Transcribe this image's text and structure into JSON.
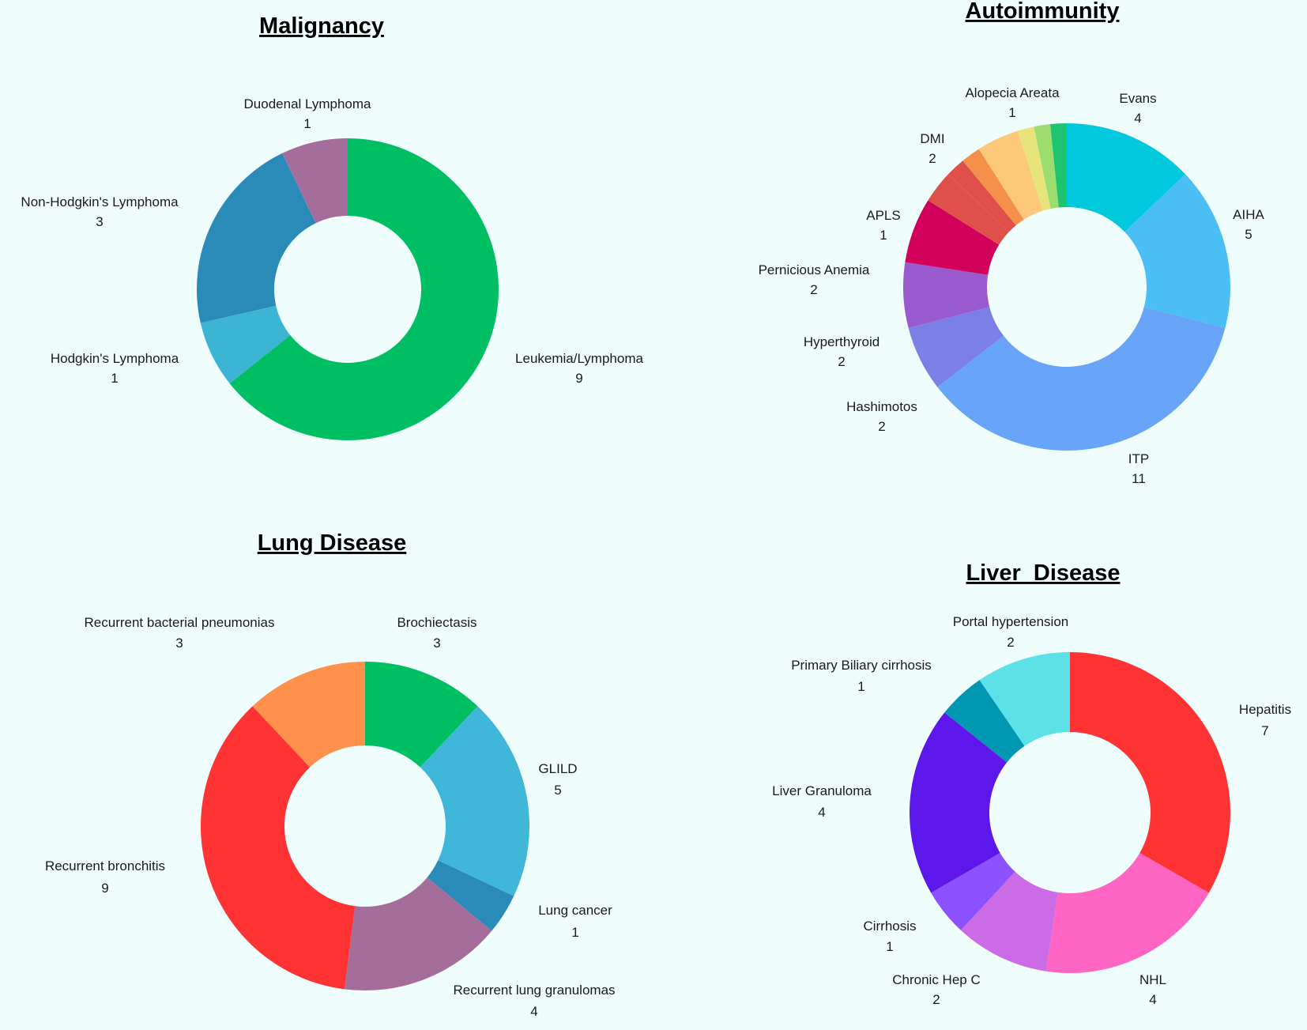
{
  "chart_data": [
    {
      "type": "pie",
      "title": "Malignancy",
      "categories": [
        "Leukemia/Lymphoma",
        "Hodgkin's Lymphoma",
        "Non-Hodgkin's Lymphoma",
        "Duodenal Lymphoma"
      ],
      "values": [
        9,
        1,
        3,
        1
      ],
      "colors": [
        "#00bf63",
        "#3cb4d3",
        "#2a8ab8",
        "#a56d9b"
      ]
    },
    {
      "type": "pie",
      "title": "Autoimmunity",
      "categories": [
        "Evans",
        "AIHA",
        "ITP",
        "Hashimotos",
        "Hyperthyroid",
        "Pernicious Anemia",
        "APLS",
        "DMI",
        "Alopecia Areata"
      ],
      "values": [
        4,
        5,
        11,
        2,
        2,
        2,
        1,
        2,
        1
      ],
      "colors": [
        "#00c9de",
        "#4bbff5",
        "#68a5f8",
        "#7b80e6",
        "#9959cf",
        "#d1005a",
        "#e0504a",
        "#f4904a",
        "#fcc97b",
        "#e8e47c",
        "#9ddc6e",
        "#1bc46d"
      ]
    },
    {
      "type": "pie",
      "title": "Lung Disease",
      "categories": [
        "Brochiectasis",
        "GLILD",
        "Lung cancer",
        "Recurrent lung granulomas",
        "Recurrent bronchitis",
        "Recurrent bacterial pneumonias"
      ],
      "values": [
        3,
        5,
        1,
        4,
        9,
        3
      ],
      "colors": [
        "#00bf63",
        "#40b6d8",
        "#2a8ab8",
        "#a56d99",
        "#ff3333",
        "#ff914d"
      ]
    },
    {
      "type": "pie",
      "title": "Liver  Disease",
      "categories": [
        "Hepatitis",
        "NHL",
        "Chronic Hep C",
        "Cirrhosis",
        "Liver Granuloma",
        "Primary Biliary cirrhosis",
        "Portal hypertension"
      ],
      "values": [
        7,
        4,
        2,
        1,
        4,
        1,
        2
      ],
      "colors": [
        "#ff3333",
        "#ff66c4",
        "#cb6ce6",
        "#8c52ff",
        "#5e17eb",
        "#0097b2",
        "#5ce1e6"
      ]
    }
  ]
}
